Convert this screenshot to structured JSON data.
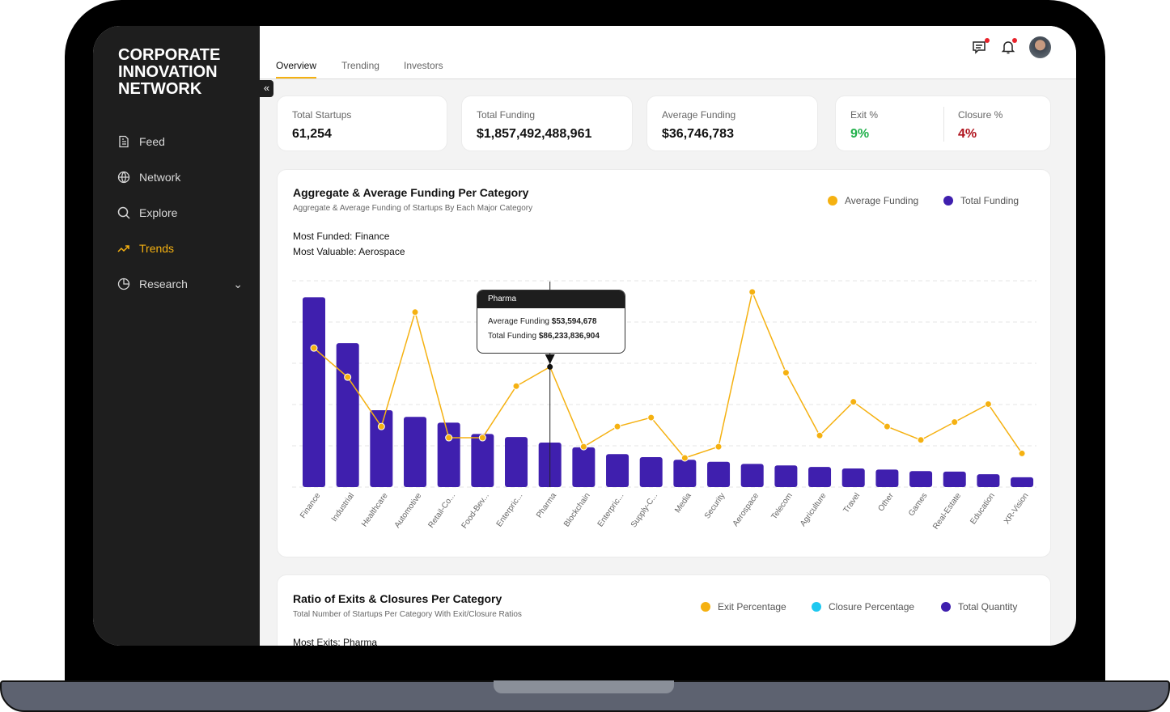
{
  "brand": {
    "line1": "CORPORATE",
    "line2": "INNOVATION",
    "line3": "NETWORK"
  },
  "sidebar": {
    "items": [
      {
        "label": "Feed",
        "icon": "document-icon"
      },
      {
        "label": "Network",
        "icon": "globe-icon"
      },
      {
        "label": "Explore",
        "icon": "search-icon"
      },
      {
        "label": "Trends",
        "icon": "trend-up-icon",
        "active": true
      },
      {
        "label": "Research",
        "icon": "pie-chart-icon"
      }
    ],
    "collapse": "«"
  },
  "tabs": [
    "Overview",
    "Trending",
    "Investors"
  ],
  "stats": {
    "total_startups": {
      "label": "Total Startups",
      "value": "61,254"
    },
    "total_funding": {
      "label": "Total Funding",
      "value": "$1,857,492,488,961"
    },
    "average_funding": {
      "label": "Average Funding",
      "value": "$36,746,783"
    },
    "exit": {
      "label": "Exit %",
      "value": "9%"
    },
    "closure": {
      "label": "Closure %",
      "value": "4%"
    }
  },
  "colors": {
    "accent": "#f5b111",
    "bar": "#3f1fae",
    "exit": "#22b14c",
    "closure": "#b0141e",
    "cyan": "#1ec8f0"
  },
  "funding_card": {
    "title": "Aggregate & Average Funding Per Category",
    "subtitle": "Aggregate & Average Funding of Startups By Each Major Category",
    "most_funded": "Most Funded: Finance",
    "most_valuable": "Most Valuable: Aerospace",
    "legend_avg": "Average Funding",
    "legend_total": "Total Funding",
    "tooltip": {
      "title": "Pharma",
      "avg_label": "Average Funding",
      "avg_value": "$53,594,678",
      "total_label": "Total Funding",
      "total_value": "$86,233,836,904"
    }
  },
  "chart_data": {
    "type": "bar+line",
    "title": "Aggregate & Average Funding Per Category",
    "categories": [
      "Finance",
      "Industrial",
      "Healthcare",
      "Automotive",
      "Retail-Co...",
      "Food-Bev...",
      "Enterpric...",
      "Pharma",
      "Blockchain",
      "Enterpric...",
      "Supply-C...",
      "Media",
      "Security",
      "Aerospace",
      "Telecom",
      "Agriculture",
      "Travel",
      "Other",
      "Games",
      "Real-Estate",
      "Education",
      "XR-Vision"
    ],
    "series": [
      {
        "name": "Total Funding",
        "unit": "billion USD",
        "type": "bar",
        "values": [
          368,
          279,
          149,
          136,
          125,
          103,
          97,
          86.2,
          77,
          64,
          58,
          53,
          49,
          45,
          42,
          39,
          36,
          34,
          31,
          30,
          25,
          19
        ]
      },
      {
        "name": "Average Funding",
        "unit": "million USD",
        "type": "line",
        "values": [
          62,
          49,
          27,
          78,
          22,
          22,
          45,
          53.6,
          18,
          27,
          31,
          13,
          18,
          87,
          51,
          23,
          38,
          27,
          21,
          29,
          37,
          15
        ]
      }
    ],
    "ylim_bar": [
      0,
      400
    ],
    "ylim_line": [
      0,
      92
    ],
    "grid": true,
    "legend": "top-right"
  },
  "ratio_card": {
    "title": "Ratio of Exits & Closures Per Category",
    "subtitle": "Total Number of Startups Per Category With Exit/Closure Ratios",
    "most_exits": "Most Exits: Pharma",
    "legend": [
      "Exit Percentage",
      "Closure Percentage",
      "Total Quantity"
    ]
  }
}
